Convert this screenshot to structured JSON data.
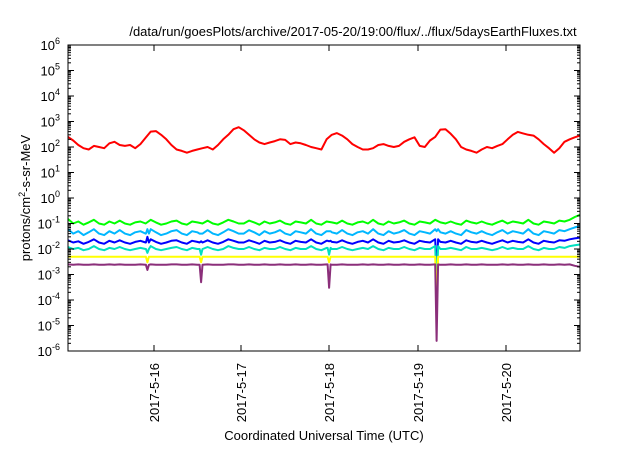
{
  "chart_data": {
    "type": "line",
    "title": "/data/run/goesPlots/archive/2017-05-20/19:00/flux/../flux/5daysEarthFluxes.txt",
    "xlabel": "Coordinated Universal Time (UTC)",
    "ylabel_main": "protons/cm",
    "ylabel_sup": "2",
    "ylabel_tail": "-s-sr-MeV",
    "yscale": "log",
    "ylim_exp": [
      -6,
      6
    ],
    "y_ticks": [
      {
        "base": "10",
        "exp": "-6"
      },
      {
        "base": "10",
        "exp": "-5"
      },
      {
        "base": "10",
        "exp": "-4"
      },
      {
        "base": "10",
        "exp": "-3"
      },
      {
        "base": "10",
        "exp": "-2"
      },
      {
        "base": "10",
        "exp": "-1"
      },
      {
        "base": "10",
        "exp": "0"
      },
      {
        "base": "10",
        "exp": "1"
      },
      {
        "base": "10",
        "exp": "2"
      },
      {
        "base": "10",
        "exp": "3"
      },
      {
        "base": "10",
        "exp": "4"
      },
      {
        "base": "10",
        "exp": "5"
      },
      {
        "base": "10",
        "exp": "6"
      }
    ],
    "xlim": [
      "2017-05-15 05:00",
      "2017-05-20 19:00"
    ],
    "x_ticks": [
      "2017-5-16",
      "2017-5-17",
      "2017-5-18",
      "2017-5-19",
      "2017-5-20"
    ],
    "grid": false,
    "series": [
      {
        "color": "#ff0000",
        "values": [
          250,
          180,
          120,
          90,
          80,
          110,
          100,
          90,
          140,
          160,
          120,
          110,
          120,
          90,
          130,
          230,
          400,
          420,
          300,
          200,
          120,
          80,
          70,
          60,
          70,
          80,
          90,
          100,
          80,
          120,
          200,
          300,
          500,
          600,
          450,
          300,
          200,
          150,
          130,
          150,
          170,
          200,
          190,
          130,
          150,
          140,
          120,
          100,
          90,
          80,
          200,
          300,
          350,
          280,
          200,
          130,
          100,
          80,
          80,
          90,
          120,
          130,
          110,
          100,
          110,
          160,
          200,
          240,
          110,
          100,
          180,
          250,
          480,
          500,
          330,
          200,
          100,
          80,
          70,
          60,
          80,
          100,
          90,
          110,
          130,
          200,
          300,
          390,
          340,
          300,
          280,
          200,
          130,
          90,
          60,
          90,
          160,
          200,
          240,
          280
        ]
      },
      {
        "color": "#00ff00",
        "values": [
          0.15,
          0.1,
          0.12,
          0.09,
          0.11,
          0.14,
          0.1,
          0.09,
          0.12,
          0.1,
          0.13,
          0.1,
          0.09,
          0.11,
          0.12,
          0.1,
          0.14,
          0.11,
          0.09,
          0.1,
          0.12,
          0.13,
          0.1,
          0.09,
          0.12,
          0.11,
          0.1,
          0.13,
          0.1,
          0.09,
          0.11,
          0.14,
          0.12,
          0.1,
          0.1,
          0.13,
          0.11,
          0.09,
          0.12,
          0.1,
          0.11,
          0.13,
          0.1,
          0.09,
          0.12,
          0.11,
          0.1,
          0.14,
          0.1,
          0.09,
          0.12,
          0.11,
          0.1,
          0.13,
          0.1,
          0.09,
          0.11,
          0.12,
          0.1,
          0.14,
          0.1,
          0.09,
          0.12,
          0.1,
          0.11,
          0.13,
          0.1,
          0.09,
          0.12,
          0.11,
          0.1,
          0.14,
          0.11,
          0.1,
          0.12,
          0.1,
          0.09,
          0.13,
          0.11,
          0.1,
          0.12,
          0.1,
          0.09,
          0.11,
          0.13,
          0.1,
          0.12,
          0.11,
          0.1,
          0.14,
          0.1,
          0.09,
          0.12,
          0.11,
          0.1,
          0.13,
          0.12,
          0.14,
          0.18,
          0.22
        ]
      },
      {
        "color": "#00b7ff",
        "values": [
          0.06,
          0.04,
          0.05,
          0.035,
          0.045,
          0.06,
          0.04,
          0.035,
          0.05,
          0.04,
          0.055,
          0.04,
          0.035,
          0.045,
          0.05,
          0.04,
          0.06,
          0.045,
          0.035,
          0.04,
          0.05,
          0.055,
          0.04,
          0.035,
          0.05,
          0.045,
          0.04,
          0.055,
          0.04,
          0.035,
          0.045,
          0.06,
          0.05,
          0.04,
          0.04,
          0.055,
          0.045,
          0.035,
          0.05,
          0.04,
          0.045,
          0.055,
          0.04,
          0.035,
          0.05,
          0.045,
          0.04,
          0.06,
          0.04,
          0.035,
          0.05,
          0.045,
          0.04,
          0.055,
          0.04,
          0.035,
          0.045,
          0.05,
          0.04,
          0.06,
          0.04,
          0.035,
          0.05,
          0.04,
          0.045,
          0.055,
          0.04,
          0.035,
          0.05,
          0.045,
          0.04,
          0.06,
          0.045,
          0.04,
          0.05,
          0.04,
          0.035,
          0.055,
          0.045,
          0.04,
          0.05,
          0.04,
          0.035,
          0.045,
          0.055,
          0.04,
          0.05,
          0.045,
          0.04,
          0.06,
          0.04,
          0.035,
          0.05,
          0.045,
          0.04,
          0.055,
          0.05,
          0.06,
          0.07,
          0.08
        ]
      },
      {
        "color": "#0000ff",
        "values": [
          0.022,
          0.018,
          0.02,
          0.016,
          0.019,
          0.024,
          0.018,
          0.016,
          0.021,
          0.018,
          0.022,
          0.018,
          0.016,
          0.019,
          0.021,
          0.018,
          0.024,
          0.019,
          0.016,
          0.018,
          0.021,
          0.022,
          0.018,
          0.016,
          0.021,
          0.019,
          0.018,
          0.022,
          0.018,
          0.016,
          0.019,
          0.024,
          0.021,
          0.018,
          0.018,
          0.022,
          0.019,
          0.016,
          0.021,
          0.018,
          0.019,
          0.022,
          0.018,
          0.016,
          0.021,
          0.019,
          0.018,
          0.024,
          0.018,
          0.016,
          0.021,
          0.019,
          0.018,
          0.022,
          0.018,
          0.016,
          0.019,
          0.021,
          0.018,
          0.024,
          0.018,
          0.016,
          0.021,
          0.018,
          0.019,
          0.022,
          0.018,
          0.016,
          0.021,
          0.019,
          0.018,
          0.024,
          0.019,
          0.018,
          0.021,
          0.018,
          0.016,
          0.022,
          0.019,
          0.018,
          0.021,
          0.018,
          0.016,
          0.019,
          0.022,
          0.018,
          0.021,
          0.019,
          0.018,
          0.024,
          0.018,
          0.016,
          0.021,
          0.019,
          0.018,
          0.022,
          0.021,
          0.024,
          0.026,
          0.028
        ]
      },
      {
        "color": "#00e0c0",
        "values": [
          0.012,
          0.01,
          0.011,
          0.009,
          0.01,
          0.013,
          0.01,
          0.009,
          0.011,
          0.01,
          0.012,
          0.01,
          0.009,
          0.01,
          0.011,
          0.01,
          0.013,
          0.01,
          0.009,
          0.01,
          0.011,
          0.012,
          0.01,
          0.009,
          0.011,
          0.01,
          0.01,
          0.012,
          0.01,
          0.009,
          0.01,
          0.013,
          0.011,
          0.01,
          0.01,
          0.012,
          0.01,
          0.009,
          0.011,
          0.01,
          0.01,
          0.012,
          0.01,
          0.009,
          0.011,
          0.01,
          0.01,
          0.013,
          0.01,
          0.009,
          0.011,
          0.01,
          0.01,
          0.012,
          0.01,
          0.009,
          0.01,
          0.011,
          0.01,
          0.013,
          0.01,
          0.009,
          0.011,
          0.01,
          0.01,
          0.012,
          0.01,
          0.009,
          0.011,
          0.01,
          0.01,
          0.013,
          0.01,
          0.01,
          0.011,
          0.01,
          0.009,
          0.012,
          0.01,
          0.01,
          0.011,
          0.01,
          0.009,
          0.01,
          0.012,
          0.01,
          0.011,
          0.01,
          0.01,
          0.013,
          0.01,
          0.009,
          0.011,
          0.01,
          0.01,
          0.012,
          0.011,
          0.013,
          0.014,
          0.015
        ]
      },
      {
        "color": "#ffff00",
        "values": [
          0.005,
          0.005,
          0.005,
          0.005,
          0.005,
          0.005,
          0.005,
          0.005,
          0.005,
          0.005,
          0.005,
          0.005,
          0.005,
          0.005,
          0.005,
          0.005,
          0.005,
          0.005,
          0.005,
          0.005,
          0.005,
          0.005,
          0.005,
          0.005,
          0.005,
          0.005,
          0.005,
          0.005,
          0.005,
          0.005,
          0.005,
          0.005,
          0.005,
          0.005,
          0.005,
          0.005,
          0.005,
          0.005,
          0.005,
          0.005,
          0.005,
          0.005,
          0.005,
          0.005,
          0.005,
          0.005,
          0.005,
          0.005,
          0.005,
          0.005,
          0.005,
          0.005,
          0.005,
          0.005,
          0.005,
          0.005,
          0.005,
          0.005,
          0.005,
          0.005,
          0.005,
          0.005,
          0.005,
          0.005,
          0.005,
          0.005,
          0.005,
          0.005,
          0.005,
          0.005,
          0.005,
          0.005,
          0.005,
          0.005,
          0.005,
          0.005,
          0.005,
          0.005,
          0.005,
          0.005,
          0.005,
          0.005,
          0.005,
          0.005,
          0.005,
          0.005,
          0.005,
          0.005,
          0.005,
          0.005,
          0.005,
          0.005,
          0.005,
          0.005,
          0.005,
          0.005,
          0.005,
          0.005,
          0.005,
          0.005
        ]
      },
      {
        "color": "#8b2f7a",
        "values": [
          0.0025,
          0.0024,
          0.0025,
          0.0024,
          0.0024,
          0.0025,
          0.0024,
          0.0024,
          0.0025,
          0.0024,
          0.0025,
          0.0024,
          0.0024,
          0.0024,
          0.0025,
          0.0024,
          0.0025,
          0.0024,
          0.0024,
          0.0024,
          0.0025,
          0.0025,
          0.0024,
          0.0024,
          0.0025,
          0.0024,
          0.0024,
          0.0025,
          0.0024,
          0.0024,
          0.0024,
          0.0025,
          0.0025,
          0.0024,
          0.0024,
          0.0025,
          0.0024,
          0.0024,
          0.0025,
          0.0024,
          0.0024,
          0.0025,
          0.0024,
          0.0024,
          0.0025,
          0.0024,
          0.0024,
          0.0025,
          0.0024,
          0.0024,
          0.0025,
          0.0024,
          0.0024,
          0.0025,
          0.0024,
          0.0024,
          0.0024,
          0.0025,
          0.0024,
          0.0025,
          0.0024,
          0.0024,
          0.0025,
          0.0024,
          0.0024,
          0.0025,
          0.0024,
          0.0024,
          0.0025,
          0.0024,
          0.0024,
          0.0025,
          0.0024,
          0.0024,
          0.0025,
          0.0024,
          0.0024,
          0.0025,
          0.0024,
          0.0024,
          0.0025,
          0.0024,
          0.0024,
          0.0024,
          0.0025,
          0.0024,
          0.0025,
          0.0024,
          0.0024,
          0.0025,
          0.0024,
          0.0024,
          0.0025,
          0.0024,
          0.0024,
          0.0025,
          0.0024,
          0.0025,
          0.0022,
          0.002
        ]
      }
    ],
    "dips": [
      {
        "x_frac": 0.155,
        "values": [
          0.06,
          0.03,
          0.007,
          0.003,
          0.0015
        ]
      },
      {
        "x_frac": 0.26,
        "values": [
          0.04,
          0.02,
          0.006,
          0.003,
          0.0005
        ]
      },
      {
        "x_frac": 0.51,
        "values": [
          0.05,
          0.02,
          0.006,
          0.003,
          0.0003
        ]
      },
      {
        "x_frac": 0.72,
        "values": [
          0.05,
          0.001,
          0.0002,
          5e-05,
          2.5e-06
        ]
      }
    ]
  }
}
